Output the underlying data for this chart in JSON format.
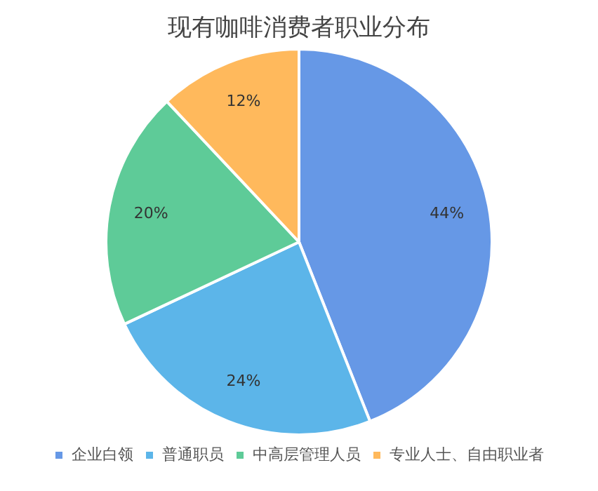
{
  "chart_data": {
    "type": "pie",
    "title": "现有咖啡消费者职业分布",
    "categories": [
      "企业白领",
      "普通职员",
      "中高层管理人员",
      "专业人士、自由职业者"
    ],
    "values": [
      44,
      24,
      20,
      12
    ],
    "value_labels": [
      "44%",
      "24%",
      "20%",
      "12%"
    ],
    "colors": [
      "#6698e6",
      "#5cb5e9",
      "#5ecb98",
      "#ffb95c"
    ],
    "legend": "bottom"
  }
}
